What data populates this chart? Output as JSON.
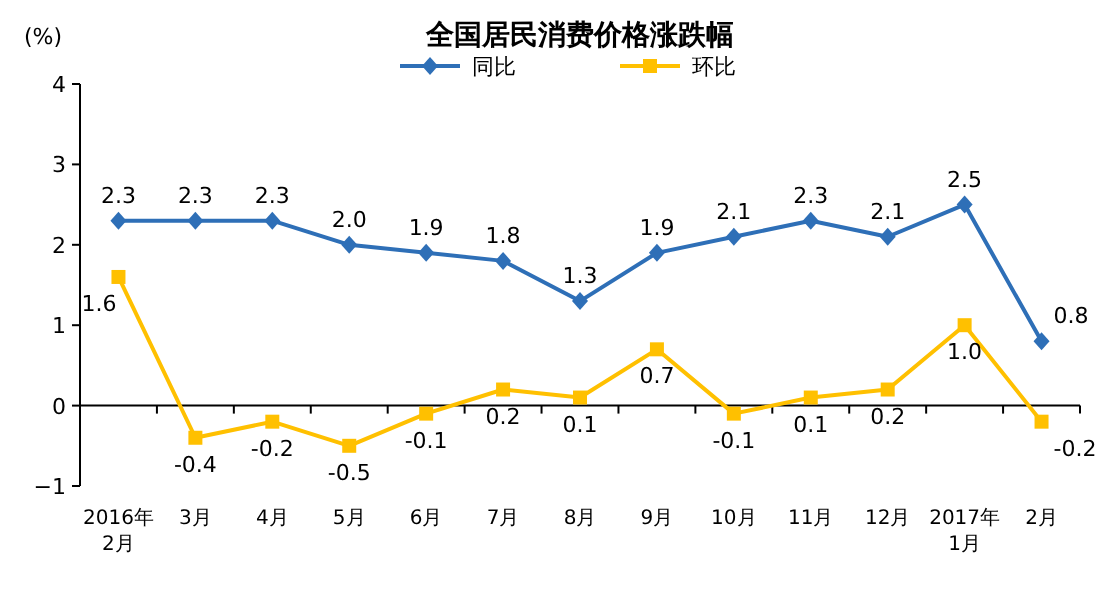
{
  "chart_data": {
    "type": "line",
    "title": "全国居民消费价格涨跌幅",
    "ylabel": "(%)",
    "categories": [
      "2016年\n2月",
      "3月",
      "4月",
      "5月",
      "6月",
      "7月",
      "8月",
      "9月",
      "10月",
      "11月",
      "12月",
      "2017年\n1月",
      "2月"
    ],
    "series": [
      {
        "name": "同比",
        "color": "#2e6fb7",
        "marker": "diamond",
        "values": [
          2.3,
          2.3,
          2.3,
          2.0,
          1.9,
          1.8,
          1.3,
          1.9,
          2.1,
          2.3,
          2.1,
          2.5,
          0.8
        ],
        "value_labels": [
          "2.3",
          "2.3",
          "2.3",
          "2.0",
          "1.9",
          "1.8",
          "1.3",
          "1.9",
          "2.1",
          "2.3",
          "2.1",
          "2.5",
          "0.8"
        ]
      },
      {
        "name": "环比",
        "color": "#ffc000",
        "marker": "square",
        "values": [
          1.6,
          -0.4,
          -0.2,
          -0.5,
          -0.1,
          0.2,
          0.1,
          0.7,
          -0.1,
          0.1,
          0.2,
          1.0,
          -0.2
        ],
        "value_labels": [
          "1.6",
          "-0.4",
          "-0.2",
          "-0.5",
          "-0.1",
          "0.2",
          "0.1",
          "0.7",
          "-0.1",
          "0.1",
          "0.2",
          "1.0",
          "-0.2"
        ]
      }
    ],
    "ylim": [
      -1,
      4
    ],
    "yticks": [
      -1,
      0,
      1,
      2,
      3,
      4
    ],
    "ref_lines": [
      {
        "axis": "y",
        "value": 0,
        "color": "#000000"
      }
    ],
    "legend": "top",
    "grid": false,
    "line_style": "solid"
  }
}
